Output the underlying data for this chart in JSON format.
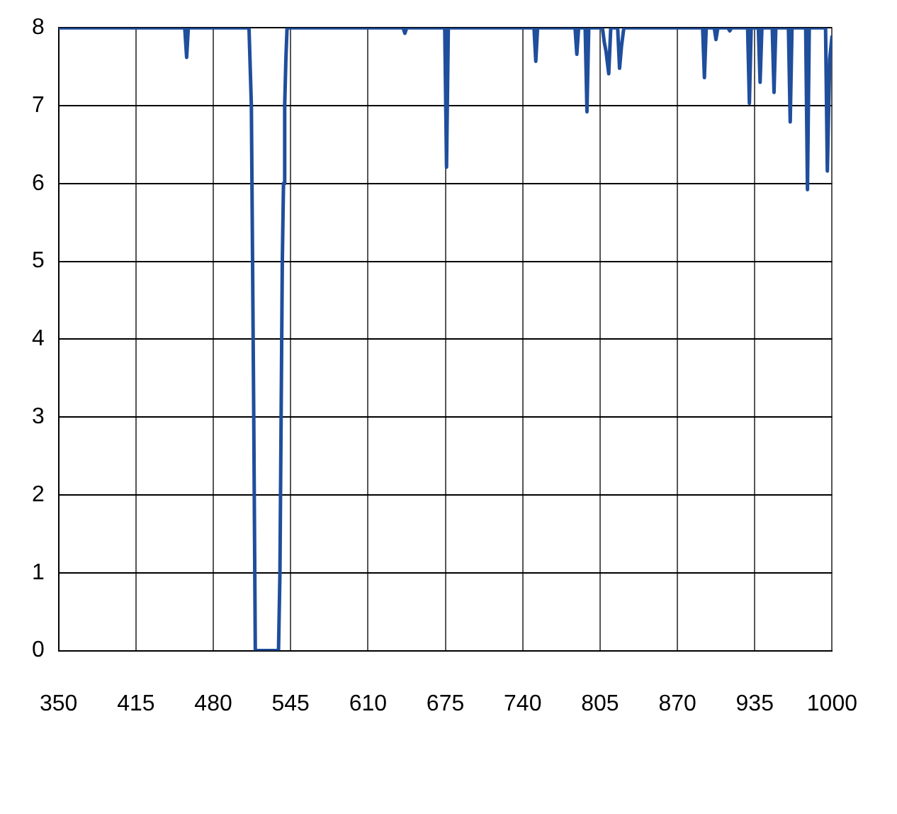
{
  "chart_data": {
    "type": "line",
    "xlim": [
      350,
      1000
    ],
    "xticks": [
      350,
      415,
      480,
      545,
      610,
      675,
      740,
      805,
      870,
      935,
      1000
    ],
    "ylim": [
      0,
      8
    ],
    "yticks": [
      0,
      1,
      2,
      3,
      4,
      5,
      6,
      7,
      8
    ],
    "grid": true,
    "legend": false,
    "marker": "none",
    "line_style": "solid",
    "series": [
      {
        "color": "#1f4e9c",
        "x": [
          350,
          456,
          457.6,
          459,
          509,
          510,
          512,
          513,
          514,
          515.3,
          534.8,
          536,
          537,
          538,
          539,
          540,
          541,
          542,
          639.5,
          641,
          642.5,
          674.5,
          676,
          677.5,
          749.5,
          751,
          752.5,
          784,
          785.5,
          787,
          792.5,
          794,
          795.5,
          807,
          808.5,
          810,
          812.3,
          814,
          819.8,
          821.4,
          823,
          825,
          826.5,
          891.2,
          892.7,
          894.2,
          901,
          902.4,
          904,
          912.5,
          914,
          915.5,
          929,
          930.5,
          932,
          938,
          939.5,
          941,
          949.7,
          951.2,
          952.7,
          963.3,
          964.8,
          966.3,
          977.8,
          979.3,
          980.8,
          994.5,
          996,
          998,
          1000
        ],
        "values": [
          8,
          8,
          7.62,
          8,
          8,
          8,
          7,
          5,
          3,
          0,
          0,
          1,
          3,
          5,
          6,
          7,
          7.6,
          8,
          8,
          7.93,
          8,
          8,
          6.21,
          8,
          8,
          7.57,
          8,
          8,
          7.66,
          8,
          8,
          6.92,
          8,
          8,
          7.82,
          7.7,
          7.41,
          8,
          8,
          7.48,
          7.76,
          8,
          8,
          8,
          7.36,
          8,
          8,
          7.85,
          8,
          8,
          7.96,
          8,
          8,
          7.03,
          8,
          8,
          7.3,
          8,
          8,
          7.17,
          8,
          8,
          6.79,
          8,
          8,
          5.92,
          8,
          8,
          6.16,
          7.6,
          7.9
        ]
      }
    ]
  }
}
